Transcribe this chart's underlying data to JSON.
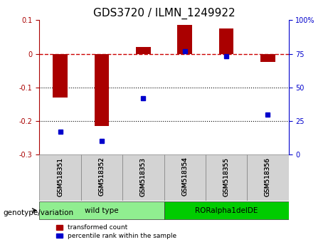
{
  "title": "GDS3720 / ILMN_1249922",
  "samples": [
    "GSM518351",
    "GSM518352",
    "GSM518353",
    "GSM518354",
    "GSM518355",
    "GSM518356"
  ],
  "red_values": [
    -0.13,
    -0.215,
    0.02,
    0.085,
    0.075,
    -0.025
  ],
  "blue_values_pct": [
    17,
    10,
    42,
    77,
    73,
    30
  ],
  "ylim_left": [
    -0.3,
    0.1
  ],
  "ylim_right": [
    0,
    100
  ],
  "groups": [
    {
      "label": "wild type",
      "indices": [
        0,
        1,
        2
      ],
      "color": "#90EE90"
    },
    {
      "label": "RORalpha1delDE",
      "indices": [
        3,
        4,
        5
      ],
      "color": "#00CC00"
    }
  ],
  "group_label": "genotype/variation",
  "red_color": "#AA0000",
  "blue_color": "#0000CC",
  "legend_red": "transformed count",
  "legend_blue": "percentile rank within the sample",
  "zero_line_color": "#CC0000",
  "grid_color": "#000000",
  "tick_label_fontsize": 7,
  "title_fontsize": 11
}
